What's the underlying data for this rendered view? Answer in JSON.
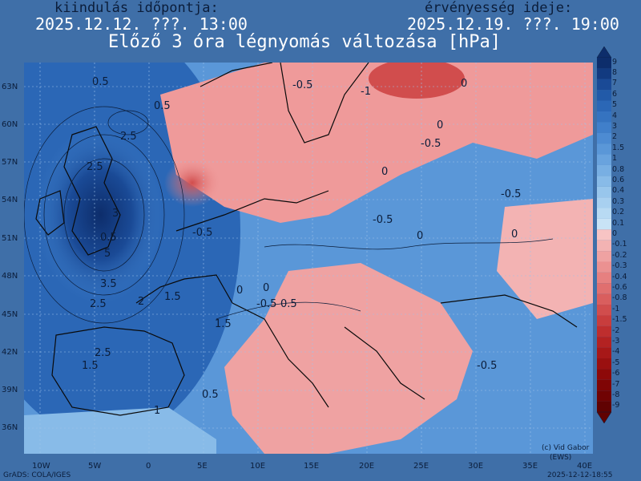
{
  "header": {
    "init_label": "kiindulás időpontja:",
    "init_value": "2025.12.12. ???. 13:00",
    "valid_label": "érvényesség ideje:",
    "valid_value": "2025.12.19. ???. 19:00",
    "title": "Előző 3 óra légnyomás változása [hPa]"
  },
  "axes": {
    "lat_labels": [
      "63N",
      "60N",
      "57N",
      "54N",
      "51N",
      "48N",
      "45N",
      "42N",
      "39N",
      "36N"
    ],
    "lon_labels": [
      "10W",
      "5W",
      "0",
      "5E",
      "10E",
      "15E",
      "20E",
      "25E",
      "30E",
      "35E",
      "40E"
    ]
  },
  "contour_labels": [
    "0.5",
    "-0.5",
    "-1",
    "-0.5",
    "0",
    "-0.5",
    "2.5",
    "0",
    "-0.5",
    "0",
    "0",
    "-0.5",
    "3",
    "0.5",
    "2.5",
    "5",
    "3.5",
    "2",
    "1.5",
    "2.5",
    "0",
    "-0.5",
    "0.5",
    "1.5",
    "2.5",
    "1.5",
    "0.5",
    "0",
    "-0.5",
    "0.5",
    "1",
    "0"
  ],
  "legend": {
    "labels": [
      "9",
      "8",
      "7",
      "6",
      "5",
      "4",
      "3",
      "2",
      "1.5",
      "1",
      "0.8",
      "0.6",
      "0.4",
      "0.3",
      "0.2",
      "0.1",
      "0",
      "-0.1",
      "-0.2",
      "-0.3",
      "-0.4",
      "-0.6",
      "-0.8",
      "-1",
      "-1.5",
      "-2",
      "-3",
      "-4",
      "-5",
      "-6",
      "-7",
      "-8",
      "-9"
    ],
    "colors": [
      "#0d2d6b",
      "#123a80",
      "#1a4a96",
      "#225aa8",
      "#2b67b6",
      "#3573c0",
      "#407fca",
      "#4d8bd2",
      "#5a97d8",
      "#69a3de",
      "#78afe3",
      "#88bbe8",
      "#98c6ec",
      "#a8d0f0",
      "#b8daf3",
      "#c8e3f6",
      "#f7c4c4",
      "#f3b3b3",
      "#efa2a2",
      "#eb9191",
      "#e68080",
      "#e06f6f",
      "#d95e5e",
      "#d14d4d",
      "#c83d3d",
      "#be2e2e",
      "#b32222",
      "#a71818",
      "#9a1010",
      "#8d0909",
      "#7f0505",
      "#700303",
      "#600202"
    ]
  },
  "footer": {
    "left": "GrADS: COLA/IGES",
    "right": "2025-12-12-18:55",
    "credit_line1": "(c) Vid Gabor",
    "credit_line2": "(EWS)"
  }
}
